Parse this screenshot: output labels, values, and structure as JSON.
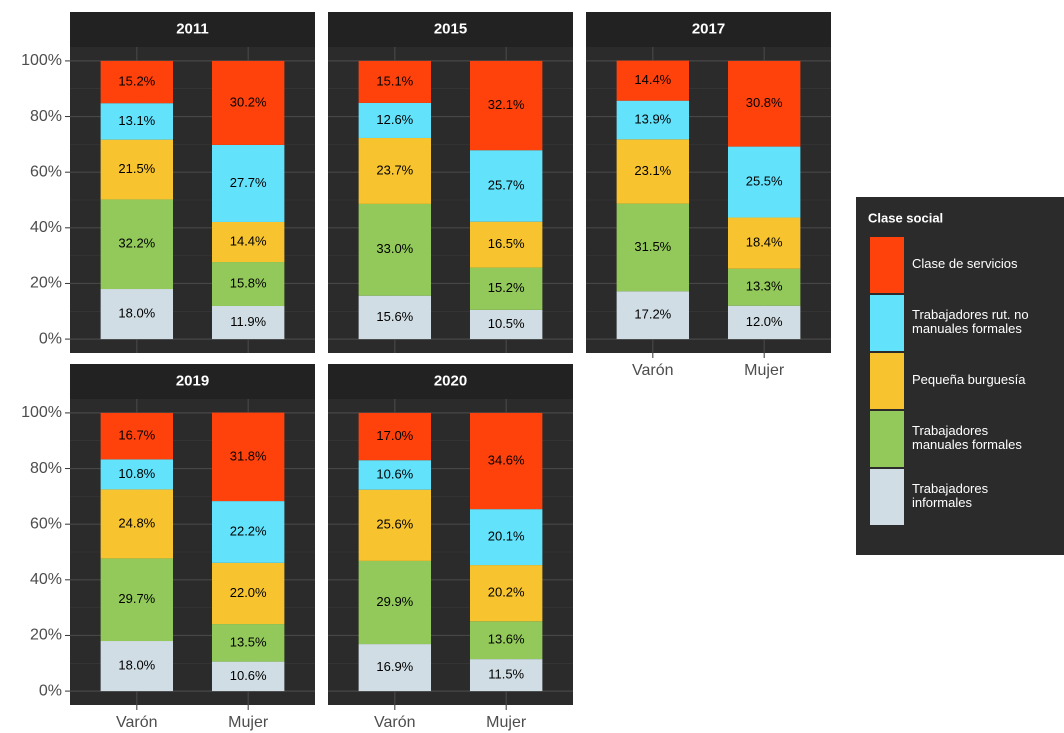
{
  "chart_data": {
    "type": "bar",
    "stacked": true,
    "categories": [
      "Varón",
      "Mujer"
    ],
    "ylim": [
      -5,
      105
    ],
    "yticks": [
      {
        "value": 0,
        "label": "0%"
      },
      {
        "value": 20,
        "label": "20%"
      },
      {
        "value": 40,
        "label": "40%"
      },
      {
        "value": 60,
        "label": "60%"
      },
      {
        "value": 80,
        "label": "80%"
      },
      {
        "value": 100,
        "label": "100%"
      }
    ],
    "grid": true,
    "legend_title": "Clase social",
    "legend_position": "right",
    "series": [
      {
        "name": "Trabajadores informales",
        "color": "#d0dde4"
      },
      {
        "name": "Trabajadores manuales formales",
        "color": "#92c95a"
      },
      {
        "name": "Pequeña burguesía",
        "color": "#f7c42f"
      },
      {
        "name": "Trabajadores rut. no manuales formales",
        "color": "#62e2fb"
      },
      {
        "name": "Clase de servicios",
        "color": "#ff420c"
      }
    ],
    "facets": [
      {
        "title": "2011",
        "series": [
          {
            "values": [
              18.0,
              11.9
            ],
            "value_labels": [
              "18.0%",
              "11.9%"
            ]
          },
          {
            "values": [
              32.2,
              15.8
            ],
            "value_labels": [
              "32.2%",
              "15.8%"
            ]
          },
          {
            "values": [
              21.5,
              14.4
            ],
            "value_labels": [
              "21.5%",
              "14.4%"
            ]
          },
          {
            "values": [
              13.1,
              27.7
            ],
            "value_labels": [
              "13.1%",
              "27.7%"
            ]
          },
          {
            "values": [
              15.2,
              30.2
            ],
            "value_labels": [
              "15.2%",
              "30.2%"
            ]
          }
        ]
      },
      {
        "title": "2015",
        "series": [
          {
            "values": [
              15.6,
              10.5
            ],
            "value_labels": [
              "15.6%",
              "10.5%"
            ]
          },
          {
            "values": [
              33.0,
              15.2
            ],
            "value_labels": [
              "33.0%",
              "15.2%"
            ]
          },
          {
            "values": [
              23.7,
              16.5
            ],
            "value_labels": [
              "23.7%",
              "16.5%"
            ]
          },
          {
            "values": [
              12.6,
              25.7
            ],
            "value_labels": [
              "12.6%",
              "25.7%"
            ]
          },
          {
            "values": [
              15.1,
              32.1
            ],
            "value_labels": [
              "15.1%",
              "32.1%"
            ]
          }
        ]
      },
      {
        "title": "2017",
        "series": [
          {
            "values": [
              17.2,
              12.0
            ],
            "value_labels": [
              "17.2%",
              "12.0%"
            ]
          },
          {
            "values": [
              31.5,
              13.3
            ],
            "value_labels": [
              "31.5%",
              "13.3%"
            ]
          },
          {
            "values": [
              23.1,
              18.4
            ],
            "value_labels": [
              "23.1%",
              "18.4%"
            ]
          },
          {
            "values": [
              13.9,
              25.5
            ],
            "value_labels": [
              "13.9%",
              "25.5%"
            ]
          },
          {
            "values": [
              14.4,
              30.8
            ],
            "value_labels": [
              "14.4%",
              "30.8%"
            ]
          }
        ]
      },
      {
        "title": "2019",
        "series": [
          {
            "values": [
              18.0,
              10.6
            ],
            "value_labels": [
              "18.0%",
              "10.6%"
            ]
          },
          {
            "values": [
              29.7,
              13.5
            ],
            "value_labels": [
              "29.7%",
              "13.5%"
            ]
          },
          {
            "values": [
              24.8,
              22.0
            ],
            "value_labels": [
              "24.8%",
              "22.0%"
            ]
          },
          {
            "values": [
              10.8,
              22.2
            ],
            "value_labels": [
              "10.8%",
              "22.2%"
            ]
          },
          {
            "values": [
              16.7,
              31.8
            ],
            "value_labels": [
              "16.7%",
              "31.8%"
            ]
          }
        ]
      },
      {
        "title": "2020",
        "series": [
          {
            "values": [
              16.9,
              11.5
            ],
            "value_labels": [
              "16.9%",
              "11.5%"
            ]
          },
          {
            "values": [
              29.9,
              13.6
            ],
            "value_labels": [
              "29.9%",
              "13.6%"
            ]
          },
          {
            "values": [
              25.6,
              20.2
            ],
            "value_labels": [
              "25.6%",
              "20.2%"
            ]
          },
          {
            "values": [
              10.6,
              20.1
            ],
            "value_labels": [
              "10.6%",
              "20.1%"
            ]
          },
          {
            "values": [
              17.0,
              34.6
            ],
            "value_labels": [
              "17.0%",
              "34.6%"
            ]
          }
        ]
      }
    ]
  }
}
